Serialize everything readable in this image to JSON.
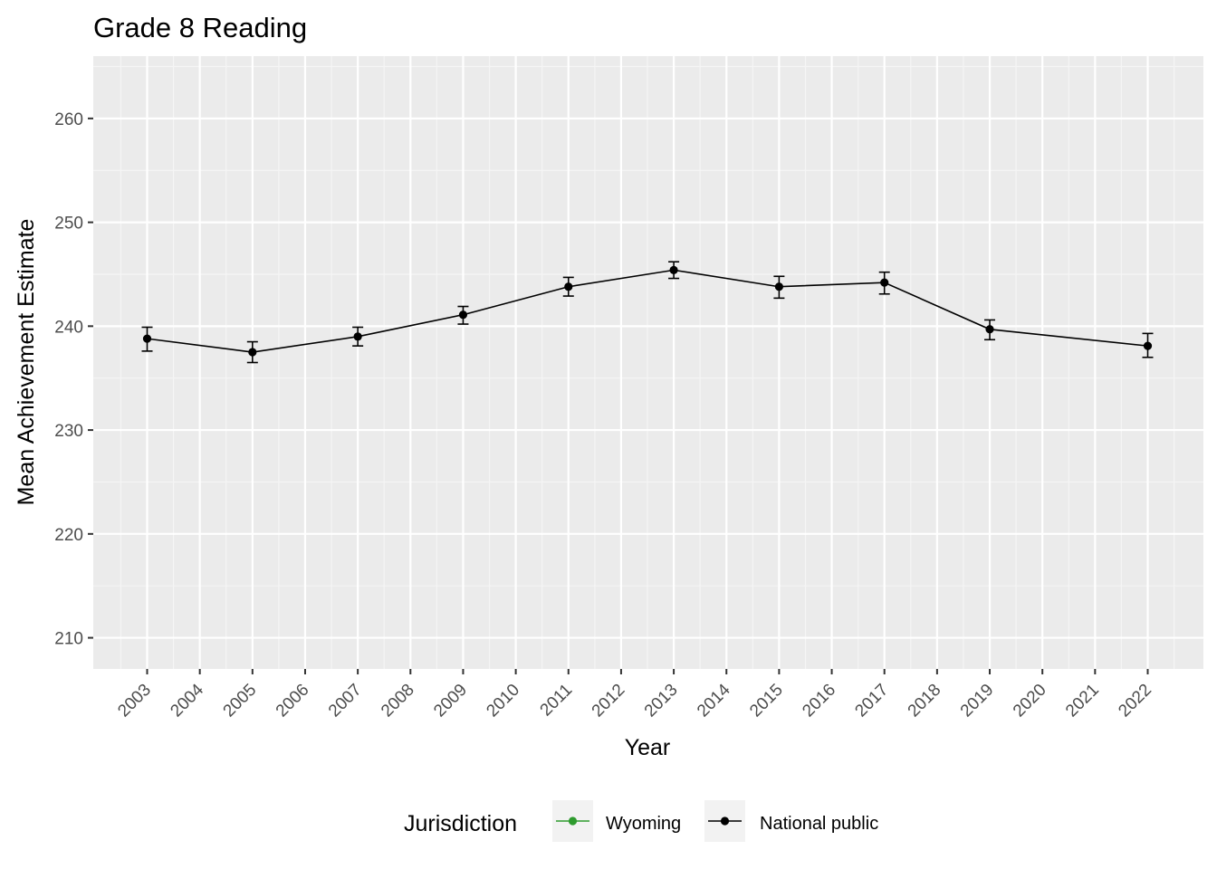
{
  "chart_data": {
    "type": "line",
    "title": "Grade 8 Reading",
    "xlabel": "Year",
    "ylabel": "Mean Achievement Estimate",
    "x_categories": [
      "2003",
      "2004",
      "2005",
      "2006",
      "2007",
      "2008",
      "2009",
      "2010",
      "2011",
      "2012",
      "2013",
      "2014",
      "2015",
      "2016",
      "2017",
      "2018",
      "2019",
      "2020",
      "2021",
      "2022"
    ],
    "y_ticks": [
      210,
      220,
      230,
      240,
      250,
      260
    ],
    "ylim": [
      207,
      266
    ],
    "grid": true,
    "legend": {
      "title": "Jurisdiction",
      "position": "bottom"
    },
    "series": [
      {
        "name": "Wyoming",
        "color": "#2e9b2e",
        "points": []
      },
      {
        "name": "National public",
        "color": "#000000",
        "points": [
          {
            "x": "2003",
            "y": 238.8,
            "lo": 237.6,
            "hi": 239.9
          },
          {
            "x": "2005",
            "y": 237.5,
            "lo": 236.5,
            "hi": 238.5
          },
          {
            "x": "2007",
            "y": 239.0,
            "lo": 238.1,
            "hi": 239.9
          },
          {
            "x": "2009",
            "y": 241.1,
            "lo": 240.2,
            "hi": 241.9
          },
          {
            "x": "2011",
            "y": 243.8,
            "lo": 242.9,
            "hi": 244.7
          },
          {
            "x": "2013",
            "y": 245.4,
            "lo": 244.6,
            "hi": 246.2
          },
          {
            "x": "2015",
            "y": 243.8,
            "lo": 242.7,
            "hi": 244.8
          },
          {
            "x": "2017",
            "y": 244.2,
            "lo": 243.1,
            "hi": 245.2
          },
          {
            "x": "2019",
            "y": 239.7,
            "lo": 238.7,
            "hi": 240.6
          },
          {
            "x": "2022",
            "y": 238.1,
            "lo": 237.0,
            "hi": 239.3
          }
        ]
      }
    ]
  }
}
